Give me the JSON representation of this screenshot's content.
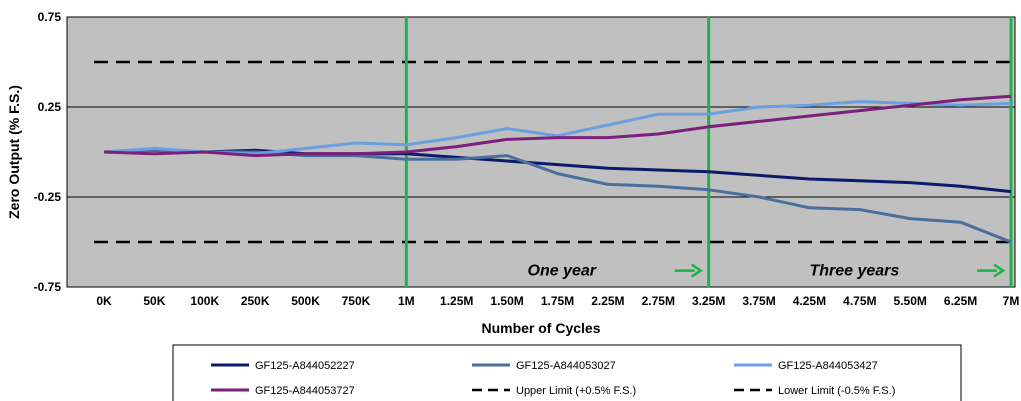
{
  "chart_data": {
    "type": "line",
    "title": "",
    "xlabel": "Number of Cycles",
    "ylabel": "Zero Output (% F.S.)",
    "ylim": [
      -0.75,
      0.75
    ],
    "yticks": [
      -0.75,
      -0.25,
      0.25,
      0.75
    ],
    "ytick_labels": [
      "-0.75",
      "-0.25",
      "0.25",
      "0.75"
    ],
    "grid": "horizontal",
    "categories": [
      "0K",
      "50K",
      "100K",
      "250K",
      "500K",
      "750K",
      "1M",
      "1.25M",
      "1.50M",
      "1.75M",
      "2.25M",
      "2.75M",
      "3.25M",
      "3.75M",
      "4.25M",
      "4.75M",
      "5.50M",
      "6.25M",
      "7M"
    ],
    "series": [
      {
        "name": "GF125-A844052227",
        "color": "#0d1a6b",
        "dash": "solid",
        "values": [
          0,
          0.01,
          0,
          0.01,
          -0.01,
          -0.01,
          -0.01,
          -0.03,
          -0.05,
          -0.07,
          -0.09,
          -0.1,
          -0.11,
          -0.13,
          -0.15,
          -0.16,
          -0.17,
          -0.19,
          -0.22
        ]
      },
      {
        "name": "GF125-A844053027",
        "color": "#4a6f9c",
        "dash": "solid",
        "values": [
          0,
          0.01,
          0,
          0,
          -0.02,
          -0.02,
          -0.04,
          -0.04,
          -0.02,
          -0.12,
          -0.18,
          -0.19,
          -0.21,
          -0.25,
          -0.31,
          -0.32,
          -0.37,
          -0.39,
          -0.5
        ]
      },
      {
        "name": "GF125-A844053427",
        "color": "#6a9fe0",
        "dash": "solid",
        "values": [
          0,
          0.02,
          0,
          -0.01,
          0.02,
          0.05,
          0.04,
          0.08,
          0.13,
          0.09,
          0.15,
          0.21,
          0.21,
          0.25,
          0.26,
          0.28,
          0.27,
          0.26,
          0.27
        ]
      },
      {
        "name": "GF125-A844053727",
        "color": "#7a1f7a",
        "dash": "solid",
        "values": [
          0,
          -0.01,
          0,
          -0.02,
          -0.01,
          -0.01,
          0,
          0.03,
          0.07,
          0.08,
          0.08,
          0.1,
          0.14,
          0.17,
          0.2,
          0.23,
          0.26,
          0.29,
          0.31
        ]
      },
      {
        "name": "Upper Limit (+0.5% F.S.)",
        "color": "#000000",
        "dash": "dashed",
        "values": [
          0.5,
          0.5,
          0.5,
          0.5,
          0.5,
          0.5,
          0.5,
          0.5,
          0.5,
          0.5,
          0.5,
          0.5,
          0.5,
          0.5,
          0.5,
          0.5,
          0.5,
          0.5,
          0.5
        ]
      },
      {
        "name": "Lower Limit (-0.5% F.S.)",
        "color": "#000000",
        "dash": "dashed",
        "values": [
          -0.5,
          -0.5,
          -0.5,
          -0.5,
          -0.5,
          -0.5,
          -0.5,
          -0.5,
          -0.5,
          -0.5,
          -0.5,
          -0.5,
          -0.5,
          -0.5,
          -0.5,
          -0.5,
          -0.5,
          -0.5,
          -0.5
        ]
      }
    ],
    "vertical_markers": [
      {
        "at": "1M",
        "color": "#1db34a"
      },
      {
        "at": "3.25M",
        "color": "#1db34a"
      },
      {
        "at": "7M",
        "color": "#1db34a"
      }
    ],
    "annotations": [
      {
        "text": "One year",
        "between": [
          "1.75M",
          "3.25M"
        ],
        "y": -0.52,
        "arrow": "right",
        "arrow_color": "#1db34a"
      },
      {
        "text": "Three years",
        "between": [
          "4.25M",
          "7M"
        ],
        "y": -0.52,
        "arrow": "right",
        "arrow_color": "#1db34a"
      }
    ],
    "colors": {
      "plot_background": "#c0c0c0",
      "gridline": "#000000"
    },
    "legend": {
      "position": "bottom",
      "columns": 3
    }
  }
}
